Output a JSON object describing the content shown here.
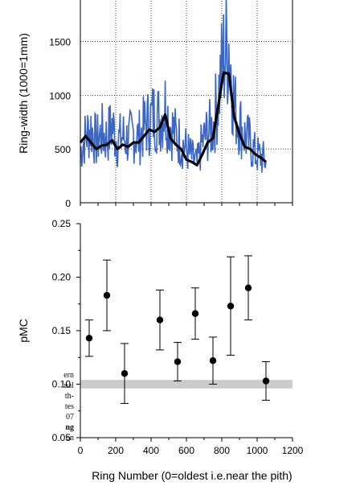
{
  "background_text_fragments": [
    {
      "text": "ern",
      "bold": false
    },
    {
      "text": "ual",
      "bold": false
    },
    {
      "text": "th-",
      "bold": false
    },
    {
      "text": "tes",
      "bold": false
    },
    {
      "text": "07",
      "bold": false
    },
    {
      "text": "ng",
      "bold": true
    },
    {
      "text": "on",
      "bold": false
    }
  ],
  "chart_data": [
    {
      "type": "line",
      "title": "",
      "xlabel": "",
      "ylabel": "Ring-width (1000=1mm)",
      "ylim": [
        0,
        1900
      ],
      "xlim": [
        0,
        1200
      ],
      "yticks": [
        "0",
        "500",
        "1000",
        "1500"
      ],
      "grid": true,
      "series": [
        {
          "color": "#3a66c6",
          "x": [
            0,
            30,
            60,
            90,
            120,
            150,
            180,
            210,
            240,
            270,
            300,
            330,
            360,
            390,
            420,
            450,
            480,
            510,
            540,
            570,
            600,
            630,
            660,
            690,
            720,
            750,
            780,
            810,
            840,
            870,
            900,
            930,
            960,
            990,
            1020,
            1050
          ],
          "values": [
            480,
            620,
            700,
            560,
            650,
            600,
            720,
            560,
            620,
            580,
            640,
            600,
            700,
            760,
            820,
            780,
            900,
            720,
            620,
            560,
            500,
            420,
            360,
            560,
            650,
            700,
            1000,
            1350,
            1500,
            900,
            750,
            620,
            560,
            450,
            430,
            380
          ]
        },
        {
          "color": "#000000",
          "x": [
            0,
            30,
            60,
            90,
            120,
            150,
            180,
            210,
            240,
            270,
            300,
            330,
            360,
            390,
            420,
            450,
            480,
            510,
            540,
            570,
            600,
            630,
            660,
            690,
            720,
            750,
            780,
            810,
            840,
            870,
            900,
            930,
            960,
            990,
            1020,
            1050
          ],
          "values": [
            560,
            620,
            560,
            500,
            530,
            540,
            580,
            500,
            540,
            520,
            560,
            560,
            620,
            680,
            660,
            700,
            820,
            600,
            540,
            500,
            400,
            380,
            350,
            450,
            560,
            600,
            900,
            1210,
            1200,
            800,
            640,
            520,
            500,
            450,
            420,
            380
          ]
        }
      ]
    },
    {
      "type": "scatter",
      "title": "",
      "xlabel": "Ring Number (0=oldest i.e.near the pith)",
      "ylabel": "pMC",
      "xlim": [
        0,
        1200
      ],
      "ylim": [
        0.05,
        0.25
      ],
      "xticks": [
        "0",
        "200",
        "400",
        "600",
        "800",
        "1000",
        "1200"
      ],
      "yticks": [
        "0.05",
        "0.10",
        "0.15",
        "0.20",
        "0.25"
      ],
      "band": {
        "from": 0.096,
        "to": 0.104,
        "color": "#cccccc"
      },
      "points": [
        {
          "x": 50,
          "y": 0.143,
          "lo": 0.126,
          "hi": 0.16
        },
        {
          "x": 150,
          "y": 0.183,
          "lo": 0.15,
          "hi": 0.216
        },
        {
          "x": 250,
          "y": 0.11,
          "lo": 0.082,
          "hi": 0.138
        },
        {
          "x": 450,
          "y": 0.16,
          "lo": 0.132,
          "hi": 0.188
        },
        {
          "x": 550,
          "y": 0.121,
          "lo": 0.103,
          "hi": 0.139
        },
        {
          "x": 650,
          "y": 0.166,
          "lo": 0.142,
          "hi": 0.19
        },
        {
          "x": 750,
          "y": 0.122,
          "lo": 0.1,
          "hi": 0.144
        },
        {
          "x": 850,
          "y": 0.173,
          "lo": 0.127,
          "hi": 0.219
        },
        {
          "x": 950,
          "y": 0.19,
          "lo": 0.16,
          "hi": 0.22
        },
        {
          "x": 1050,
          "y": 0.103,
          "lo": 0.085,
          "hi": 0.121
        }
      ]
    }
  ]
}
